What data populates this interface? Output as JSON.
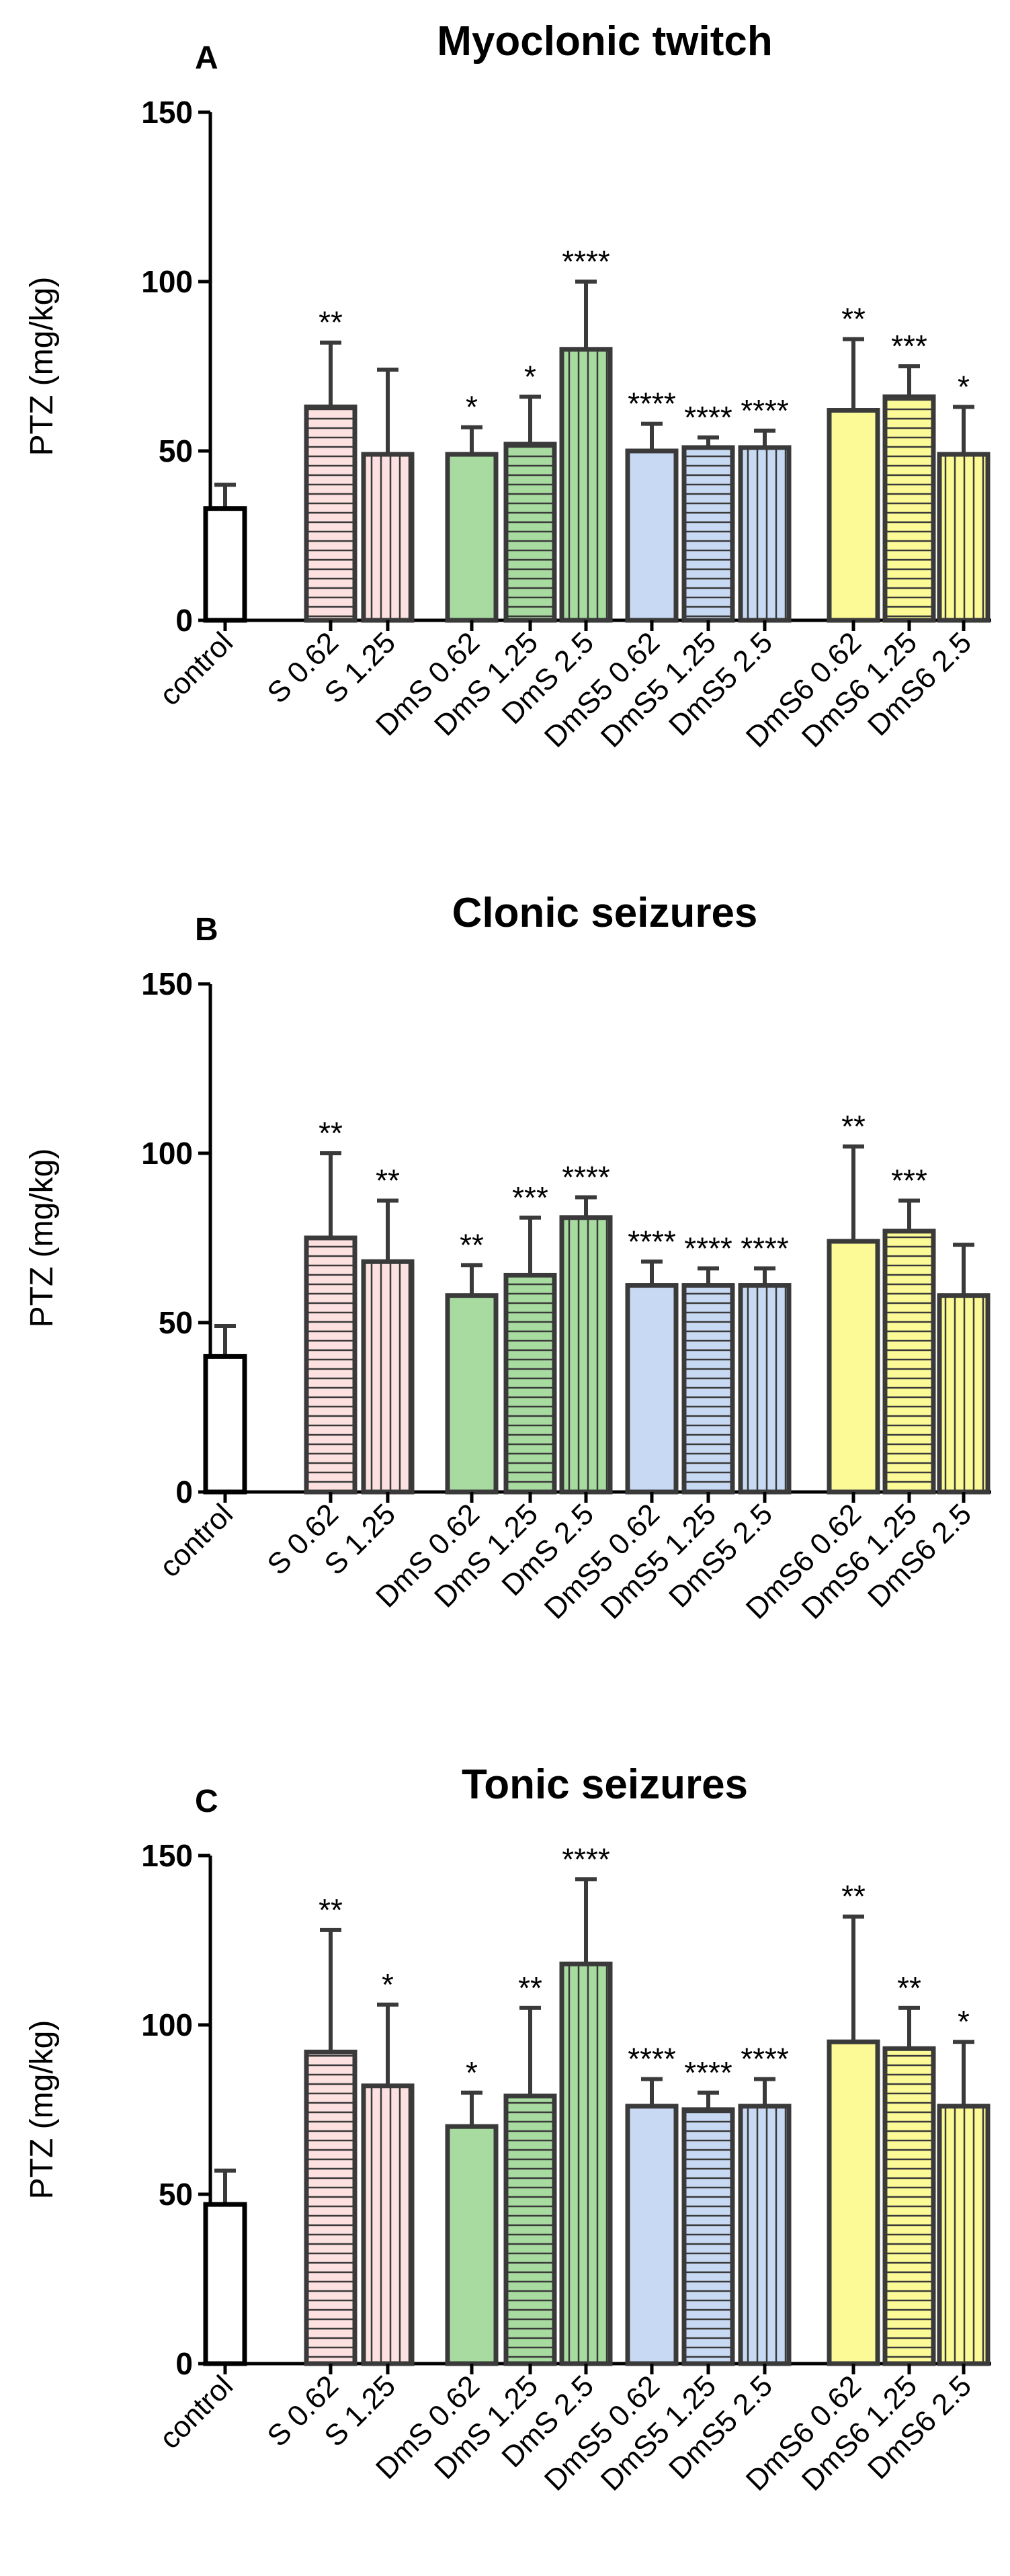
{
  "chart_data": [
    {
      "type": "bar",
      "panel": "A",
      "title": "Myoclonic twitch",
      "ylabel": "PTZ (mg/kg)",
      "xlabel": "",
      "ylim": [
        0,
        150
      ],
      "yticks": [
        0,
        50,
        100,
        150
      ],
      "categories": [
        "control",
        "S 0.62",
        "S 1.25",
        "DmS 0.62",
        "DmS 1.25",
        "DmS 2.5",
        "DmS5 0.62",
        "DmS5 1.25",
        "DmS5 2.5",
        "DmS6 0.62",
        "DmS6 1.25",
        "DmS6 2.5"
      ],
      "values": [
        33,
        63,
        49,
        49,
        52,
        80,
        50,
        51,
        51,
        62,
        66,
        49
      ],
      "errors": [
        7,
        19,
        25,
        8,
        14,
        20,
        8,
        3,
        5,
        21,
        9,
        14
      ],
      "significance": [
        "",
        "**",
        "",
        "*",
        "*",
        "****",
        "****",
        "****",
        "****",
        "**",
        "***",
        "*"
      ]
    },
    {
      "type": "bar",
      "panel": "B",
      "title": "Clonic seizures",
      "ylabel": "PTZ (mg/kg)",
      "xlabel": "",
      "ylim": [
        0,
        150
      ],
      "yticks": [
        0,
        50,
        100,
        150
      ],
      "categories": [
        "control",
        "S 0.62",
        "S 1.25",
        "DmS 0.62",
        "DmS 1.25",
        "DmS 2.5",
        "DmS5 0.62",
        "DmS5 1.25",
        "DmS5 2.5",
        "DmS6 0.62",
        "DmS6 1.25",
        "DmS6 2.5"
      ],
      "values": [
        40,
        75,
        68,
        58,
        64,
        81,
        61,
        61,
        61,
        74,
        77,
        58
      ],
      "errors": [
        9,
        25,
        18,
        9,
        17,
        6,
        7,
        5,
        5,
        28,
        9,
        15
      ],
      "significance": [
        "",
        "**",
        "**",
        "**",
        "***",
        "****",
        "****",
        "****",
        "****",
        "**",
        "***",
        ""
      ]
    },
    {
      "type": "bar",
      "panel": "C",
      "title": "Tonic seizures",
      "ylabel": "PTZ (mg/kg)",
      "xlabel": "",
      "ylim": [
        0,
        150
      ],
      "yticks": [
        0,
        50,
        100,
        150
      ],
      "categories": [
        "control",
        "S 0.62",
        "S 1.25",
        "DmS 0.62",
        "DmS 1.25",
        "DmS 2.5",
        "DmS5 0.62",
        "DmS5 1.25",
        "DmS5 2.5",
        "DmS6 0.62",
        "DmS6 1.25",
        "DmS6 2.5"
      ],
      "values": [
        47,
        92,
        82,
        70,
        79,
        118,
        76,
        75,
        76,
        95,
        93,
        76
      ],
      "errors": [
        10,
        36,
        24,
        10,
        26,
        25,
        8,
        5,
        8,
        37,
        12,
        19
      ],
      "significance": [
        "",
        "**",
        "*",
        "*",
        "**",
        "****",
        "****",
        "****",
        "****",
        "**",
        "**",
        "*"
      ]
    }
  ],
  "colors": {
    "control": "#ffffff",
    "S": "#fde0e0",
    "DmS": "#a8dba0",
    "DmS5": "#c8daf3",
    "DmS6": "#fcfa96",
    "outline": "#3a3a3a",
    "hatch": "#3a3a3a",
    "axis": "#000000"
  },
  "bar_fills": [
    "control",
    "S",
    "S",
    "DmS",
    "DmS",
    "DmS",
    "DmS5",
    "DmS5",
    "DmS5",
    "DmS6",
    "DmS6",
    "DmS6"
  ],
  "bar_hatch": [
    "none",
    "horizontal",
    "vertical",
    "none",
    "horizontal",
    "vertical",
    "none",
    "horizontal",
    "vertical",
    "none",
    "horizontal",
    "vertical"
  ]
}
